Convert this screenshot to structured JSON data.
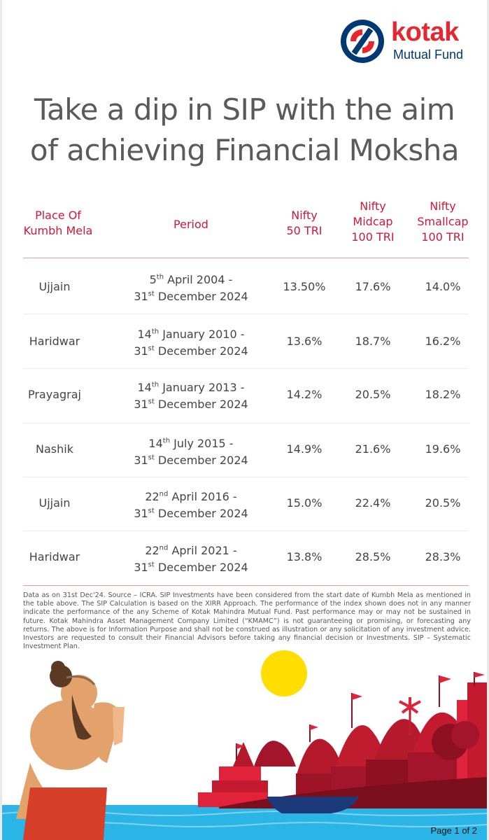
{
  "logo": {
    "brand": "kotak",
    "subtitle": "Mutual Fund"
  },
  "headline": {
    "line1": "Take a dip in SIP with the aim",
    "line2": "of achieving Financial Moksha"
  },
  "table": {
    "headers": {
      "place": [
        "Place Of",
        "Kumbh Mela"
      ],
      "period": "Period",
      "nifty50": [
        "Nifty",
        "50 TRI"
      ],
      "midcap": [
        "Nifty",
        "Midcap",
        "100 TRI"
      ],
      "smallcap": [
        "Nifty",
        "Smallcap",
        "100 TRI"
      ]
    },
    "rows": [
      {
        "place": "Ujjain",
        "start_day": "5",
        "start_suffix": "th",
        "start_rest": " April 2004 -",
        "end_day": "31",
        "end_suffix": "st",
        "end_rest": " December 2024",
        "nifty50": "13.50%",
        "midcap": "17.6%",
        "smallcap": "14.0%"
      },
      {
        "place": "Haridwar",
        "start_day": "14",
        "start_suffix": "th",
        "start_rest": " January 2010 -",
        "end_day": "31",
        "end_suffix": "st",
        "end_rest": " December 2024",
        "nifty50": "13.6%",
        "midcap": "18.7%",
        "smallcap": "16.2%"
      },
      {
        "place": "Prayagraj",
        "start_day": "14",
        "start_suffix": "th",
        "start_rest": " January 2013 -",
        "end_day": "31",
        "end_suffix": "st",
        "end_rest": " December 2024",
        "nifty50": "14.2%",
        "midcap": "20.5%",
        "smallcap": "18.2%"
      },
      {
        "place": "Nashik",
        "start_day": "14",
        "start_suffix": "th",
        "start_rest": " July 2015 -",
        "end_day": "31",
        "end_suffix": "st",
        "end_rest": " December 2024",
        "nifty50": "14.9%",
        "midcap": "21.6%",
        "smallcap": "19.6%"
      },
      {
        "place": "Ujjain",
        "start_day": "22",
        "start_suffix": "nd",
        "start_rest": " April 2016 -",
        "end_day": "31",
        "end_suffix": "st",
        "end_rest": " December 2024",
        "nifty50": "15.0%",
        "midcap": "22.4%",
        "smallcap": "20.5%"
      },
      {
        "place": "Haridwar",
        "start_day": "22",
        "start_suffix": "nd",
        "start_rest": " April 2021 -",
        "end_day": "31",
        "end_suffix": "st",
        "end_rest": " December 2024",
        "nifty50": "13.8%",
        "midcap": "28.5%",
        "smallcap": "28.3%"
      }
    ]
  },
  "disclaimer": "Data as on 31st Dec'24. Source – ICRA. SIP Investments have been considered from the start date of Kumbh Mela as mentioned in the table above. The SIP Calculation is based on the XIRR Approach. The performance of the index shown does not in any manner indicate the performance of the any Scheme of Kotak Mahindra Mutual Fund. Past performance may or may not be sustained in future. Kotak Mahindra Asset Management Company Limited (“KMAMC”) is not guaranteeing or promising, or forecasting any returns. The above is for Information Purpose and shall not be construed as illustration or any solicitation of any investment advice. Investors are requested to consult their Financial Advisors before taking any financial decision or Investments. SIP – Systematic Investment Plan.",
  "page_indicator": "Page 1 of 2",
  "colors": {
    "accent_red": "#d2173a",
    "brand_red": "#e8262f",
    "brand_navy": "#003874",
    "heading_grey": "#5a5a5a"
  }
}
